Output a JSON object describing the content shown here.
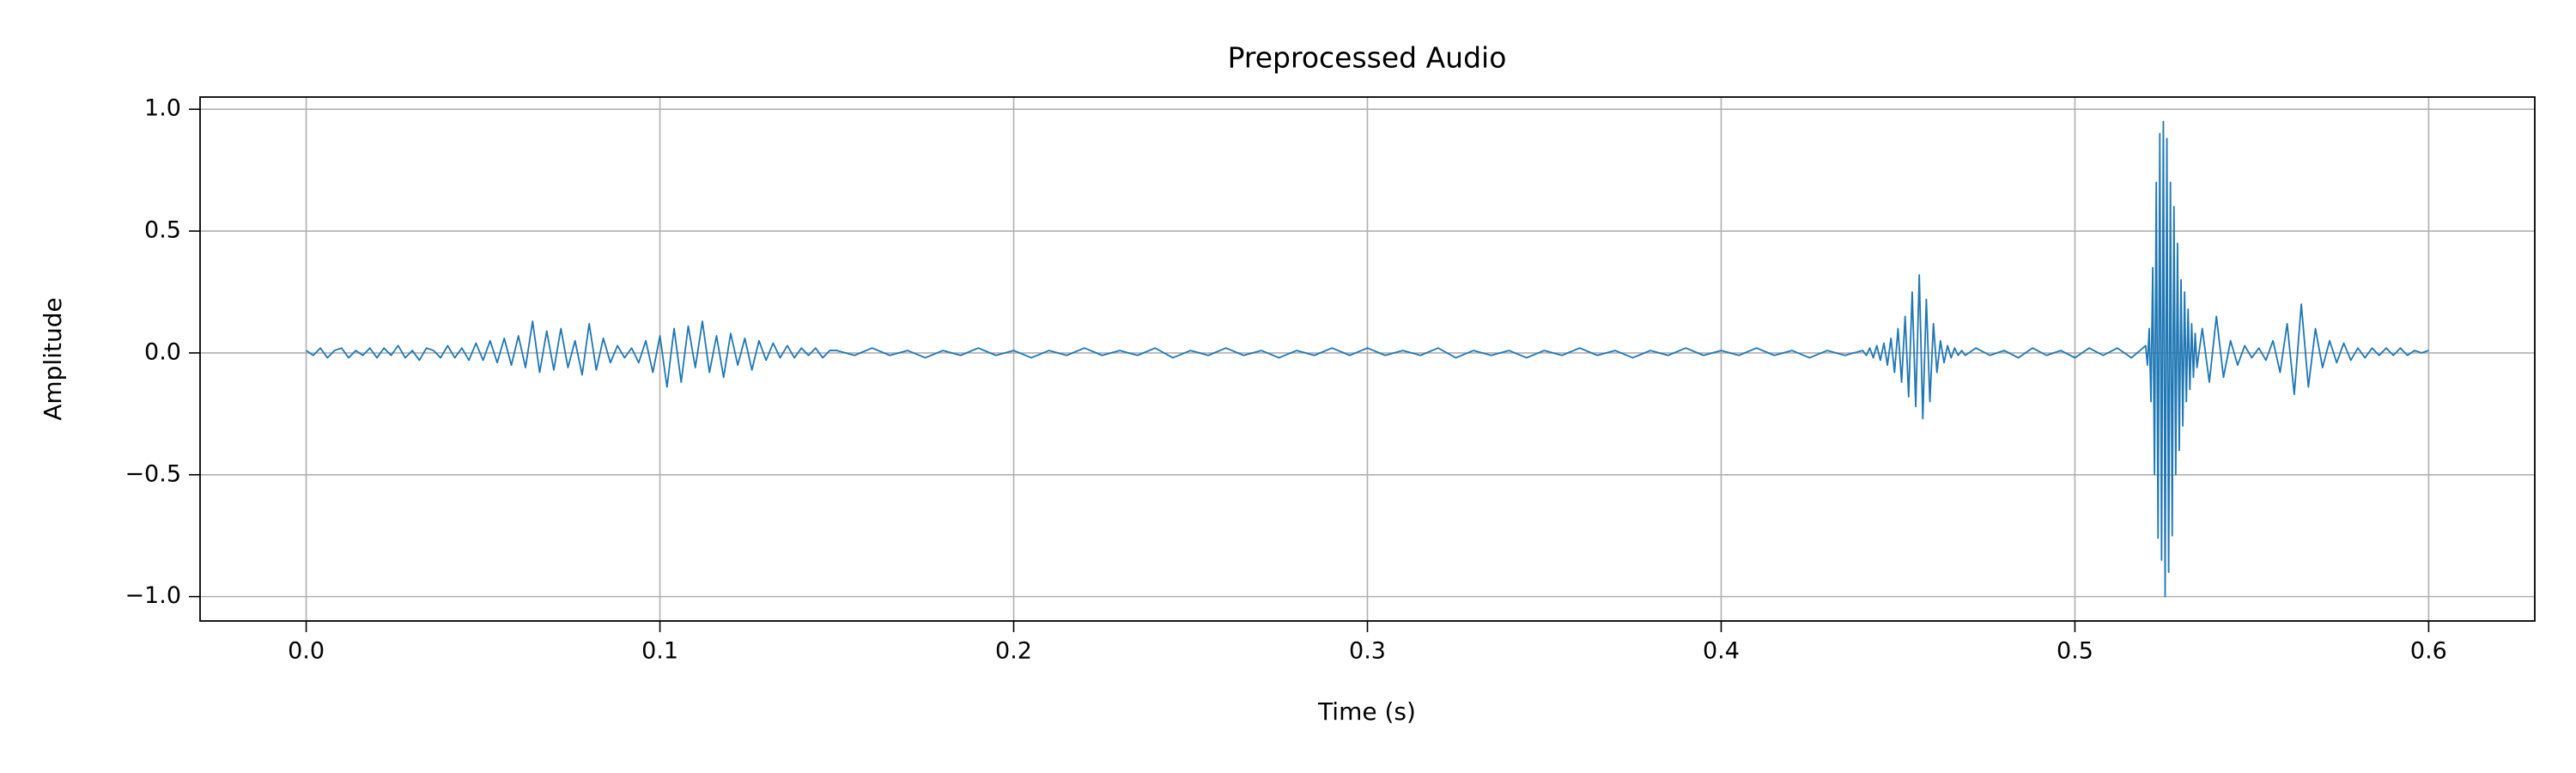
{
  "chart_data": {
    "type": "line",
    "title": "Preprocessed Audio",
    "xlabel": "Time (s)",
    "ylabel": "Amplitude",
    "color": "#1f77b4",
    "grid": true,
    "xlim": [
      -0.03,
      0.63
    ],
    "ylim": [
      -1.1,
      1.05
    ],
    "xticks": [
      {
        "value": 0,
        "label": "0.0"
      },
      0.1,
      0.2,
      0.3,
      0.4,
      0.5,
      0.6
    ],
    "yticks": [
      {
        "value": -1,
        "label": "−1.0"
      },
      {
        "value": -0.5,
        "label": "−0.5"
      },
      {
        "value": 0,
        "label": "0.0"
      },
      0.5,
      {
        "value": 1,
        "label": "1.0"
      }
    ],
    "x": [
      0,
      0.002,
      0.004,
      0.006,
      0.008,
      0.01,
      0.012,
      0.014,
      0.016,
      0.018,
      0.02,
      0.022,
      0.024,
      0.026,
      0.028,
      0.03,
      0.032,
      0.034,
      0.036,
      0.038,
      0.04,
      0.042,
      0.044,
      0.046,
      0.048,
      0.05,
      0.052,
      0.054,
      0.056,
      0.058,
      0.06,
      0.062,
      0.064,
      0.066,
      0.068,
      0.07,
      0.072,
      0.074,
      0.076,
      0.078,
      0.08,
      0.082,
      0.084,
      0.086,
      0.088,
      0.09,
      0.092,
      0.094,
      0.096,
      0.098,
      0.1,
      0.102,
      0.104,
      0.106,
      0.108,
      0.11,
      0.112,
      0.114,
      0.116,
      0.118,
      0.12,
      0.122,
      0.124,
      0.126,
      0.128,
      0.13,
      0.132,
      0.134,
      0.136,
      0.138,
      0.14,
      0.142,
      0.144,
      0.146,
      0.148,
      0.15,
      0.155,
      0.16,
      0.165,
      0.17,
      0.175,
      0.18,
      0.185,
      0.19,
      0.195,
      0.2,
      0.205,
      0.21,
      0.215,
      0.22,
      0.225,
      0.23,
      0.235,
      0.24,
      0.245,
      0.25,
      0.255,
      0.26,
      0.265,
      0.27,
      0.275,
      0.28,
      0.285,
      0.29,
      0.295,
      0.3,
      0.305,
      0.31,
      0.315,
      0.32,
      0.325,
      0.33,
      0.335,
      0.34,
      0.345,
      0.35,
      0.355,
      0.36,
      0.365,
      0.37,
      0.375,
      0.38,
      0.385,
      0.39,
      0.395,
      0.4,
      0.405,
      0.41,
      0.415,
      0.42,
      0.425,
      0.43,
      0.435,
      0.44,
      0.441,
      0.442,
      0.443,
      0.444,
      0.445,
      0.446,
      0.447,
      0.448,
      0.449,
      0.45,
      0.451,
      0.452,
      0.453,
      0.454,
      0.455,
      0.456,
      0.457,
      0.458,
      0.459,
      0.46,
      0.461,
      0.462,
      0.463,
      0.464,
      0.465,
      0.466,
      0.467,
      0.468,
      0.469,
      0.472,
      0.476,
      0.48,
      0.484,
      0.488,
      0.492,
      0.496,
      0.5,
      0.504,
      0.508,
      0.512,
      0.516,
      0.52,
      0.5205,
      0.521,
      0.5215,
      0.522,
      0.5225,
      0.523,
      0.5235,
      0.524,
      0.5245,
      0.525,
      0.5255,
      0.526,
      0.5265,
      0.527,
      0.5275,
      0.528,
      0.5285,
      0.529,
      0.5295,
      0.53,
      0.5305,
      0.531,
      0.5315,
      0.532,
      0.5325,
      0.533,
      0.5335,
      0.534,
      0.5345,
      0.536,
      0.538,
      0.54,
      0.542,
      0.544,
      0.546,
      0.548,
      0.55,
      0.552,
      0.554,
      0.556,
      0.558,
      0.56,
      0.562,
      0.564,
      0.566,
      0.568,
      0.57,
      0.572,
      0.574,
      0.576,
      0.578,
      0.58,
      0.582,
      0.584,
      0.586,
      0.588,
      0.59,
      0.592,
      0.594,
      0.596,
      0.598,
      0.6
    ],
    "values": [
      0.01,
      -0.01,
      0.02,
      -0.02,
      0.01,
      0.02,
      -0.02,
      0.01,
      -0.01,
      0.02,
      -0.02,
      0.02,
      -0.01,
      0.03,
      -0.02,
      0.01,
      -0.03,
      0.02,
      0.01,
      -0.02,
      0.03,
      -0.02,
      0.02,
      -0.03,
      0.04,
      -0.03,
      0.05,
      -0.04,
      0.06,
      -0.05,
      0.07,
      -0.06,
      0.13,
      -0.08,
      0.09,
      -0.07,
      0.1,
      -0.06,
      0.05,
      -0.09,
      0.12,
      -0.07,
      0.06,
      -0.04,
      0.03,
      -0.02,
      0.02,
      -0.04,
      0.05,
      -0.08,
      0.07,
      -0.14,
      0.1,
      -0.12,
      0.11,
      -0.06,
      0.13,
      -0.08,
      0.07,
      -0.1,
      0.08,
      -0.05,
      0.06,
      -0.07,
      0.05,
      -0.03,
      0.04,
      -0.02,
      0.03,
      -0.02,
      0.02,
      -0.01,
      0.02,
      -0.02,
      0.01,
      0.01,
      -0.01,
      0.02,
      -0.01,
      0.01,
      -0.02,
      0.01,
      -0.01,
      0.02,
      -0.01,
      0.01,
      -0.02,
      0.01,
      -0.01,
      0.02,
      -0.01,
      0.01,
      -0.01,
      0.02,
      -0.02,
      0.01,
      -0.01,
      0.02,
      -0.01,
      0.01,
      -0.02,
      0.01,
      -0.01,
      0.02,
      -0.01,
      0.02,
      -0.01,
      0.01,
      -0.01,
      0.02,
      -0.02,
      0.01,
      -0.01,
      0.01,
      -0.02,
      0.01,
      -0.01,
      0.02,
      -0.01,
      0.01,
      -0.02,
      0.01,
      -0.01,
      0.02,
      -0.01,
      0.01,
      -0.01,
      0.02,
      -0.01,
      0.01,
      -0.02,
      0.01,
      -0.01,
      0.01,
      -0.01,
      0.02,
      -0.02,
      0.03,
      -0.03,
      0.04,
      -0.05,
      0.06,
      -0.08,
      0.1,
      -0.12,
      0.15,
      -0.18,
      0.25,
      -0.22,
      0.32,
      -0.27,
      0.22,
      -0.2,
      0.12,
      -0.08,
      0.05,
      -0.04,
      0.03,
      -0.02,
      0.02,
      -0.01,
      0.01,
      -0.01,
      0.02,
      -0.01,
      0.01,
      -0.02,
      0.02,
      -0.01,
      0.01,
      -0.02,
      0.02,
      -0.01,
      0.02,
      -0.02,
      0.03,
      -0.05,
      0.1,
      -0.2,
      0.35,
      -0.5,
      0.7,
      -0.76,
      0.9,
      -0.85,
      0.95,
      -1.0,
      0.88,
      -0.9,
      0.7,
      -0.75,
      0.6,
      -0.5,
      0.45,
      -0.4,
      0.3,
      -0.3,
      0.25,
      -0.2,
      0.18,
      -0.15,
      0.12,
      -0.1,
      0.08,
      -0.06,
      0.1,
      -0.12,
      0.15,
      -0.1,
      0.05,
      -0.05,
      0.03,
      -0.02,
      0.02,
      -0.03,
      0.05,
      -0.08,
      0.12,
      -0.17,
      0.2,
      -0.14,
      0.1,
      -0.06,
      0.05,
      -0.04,
      0.04,
      -0.03,
      0.02,
      -0.02,
      0.02,
      -0.01,
      0.02,
      -0.01,
      0.02,
      -0.01,
      0.01,
      0.0,
      0.01
    ]
  }
}
